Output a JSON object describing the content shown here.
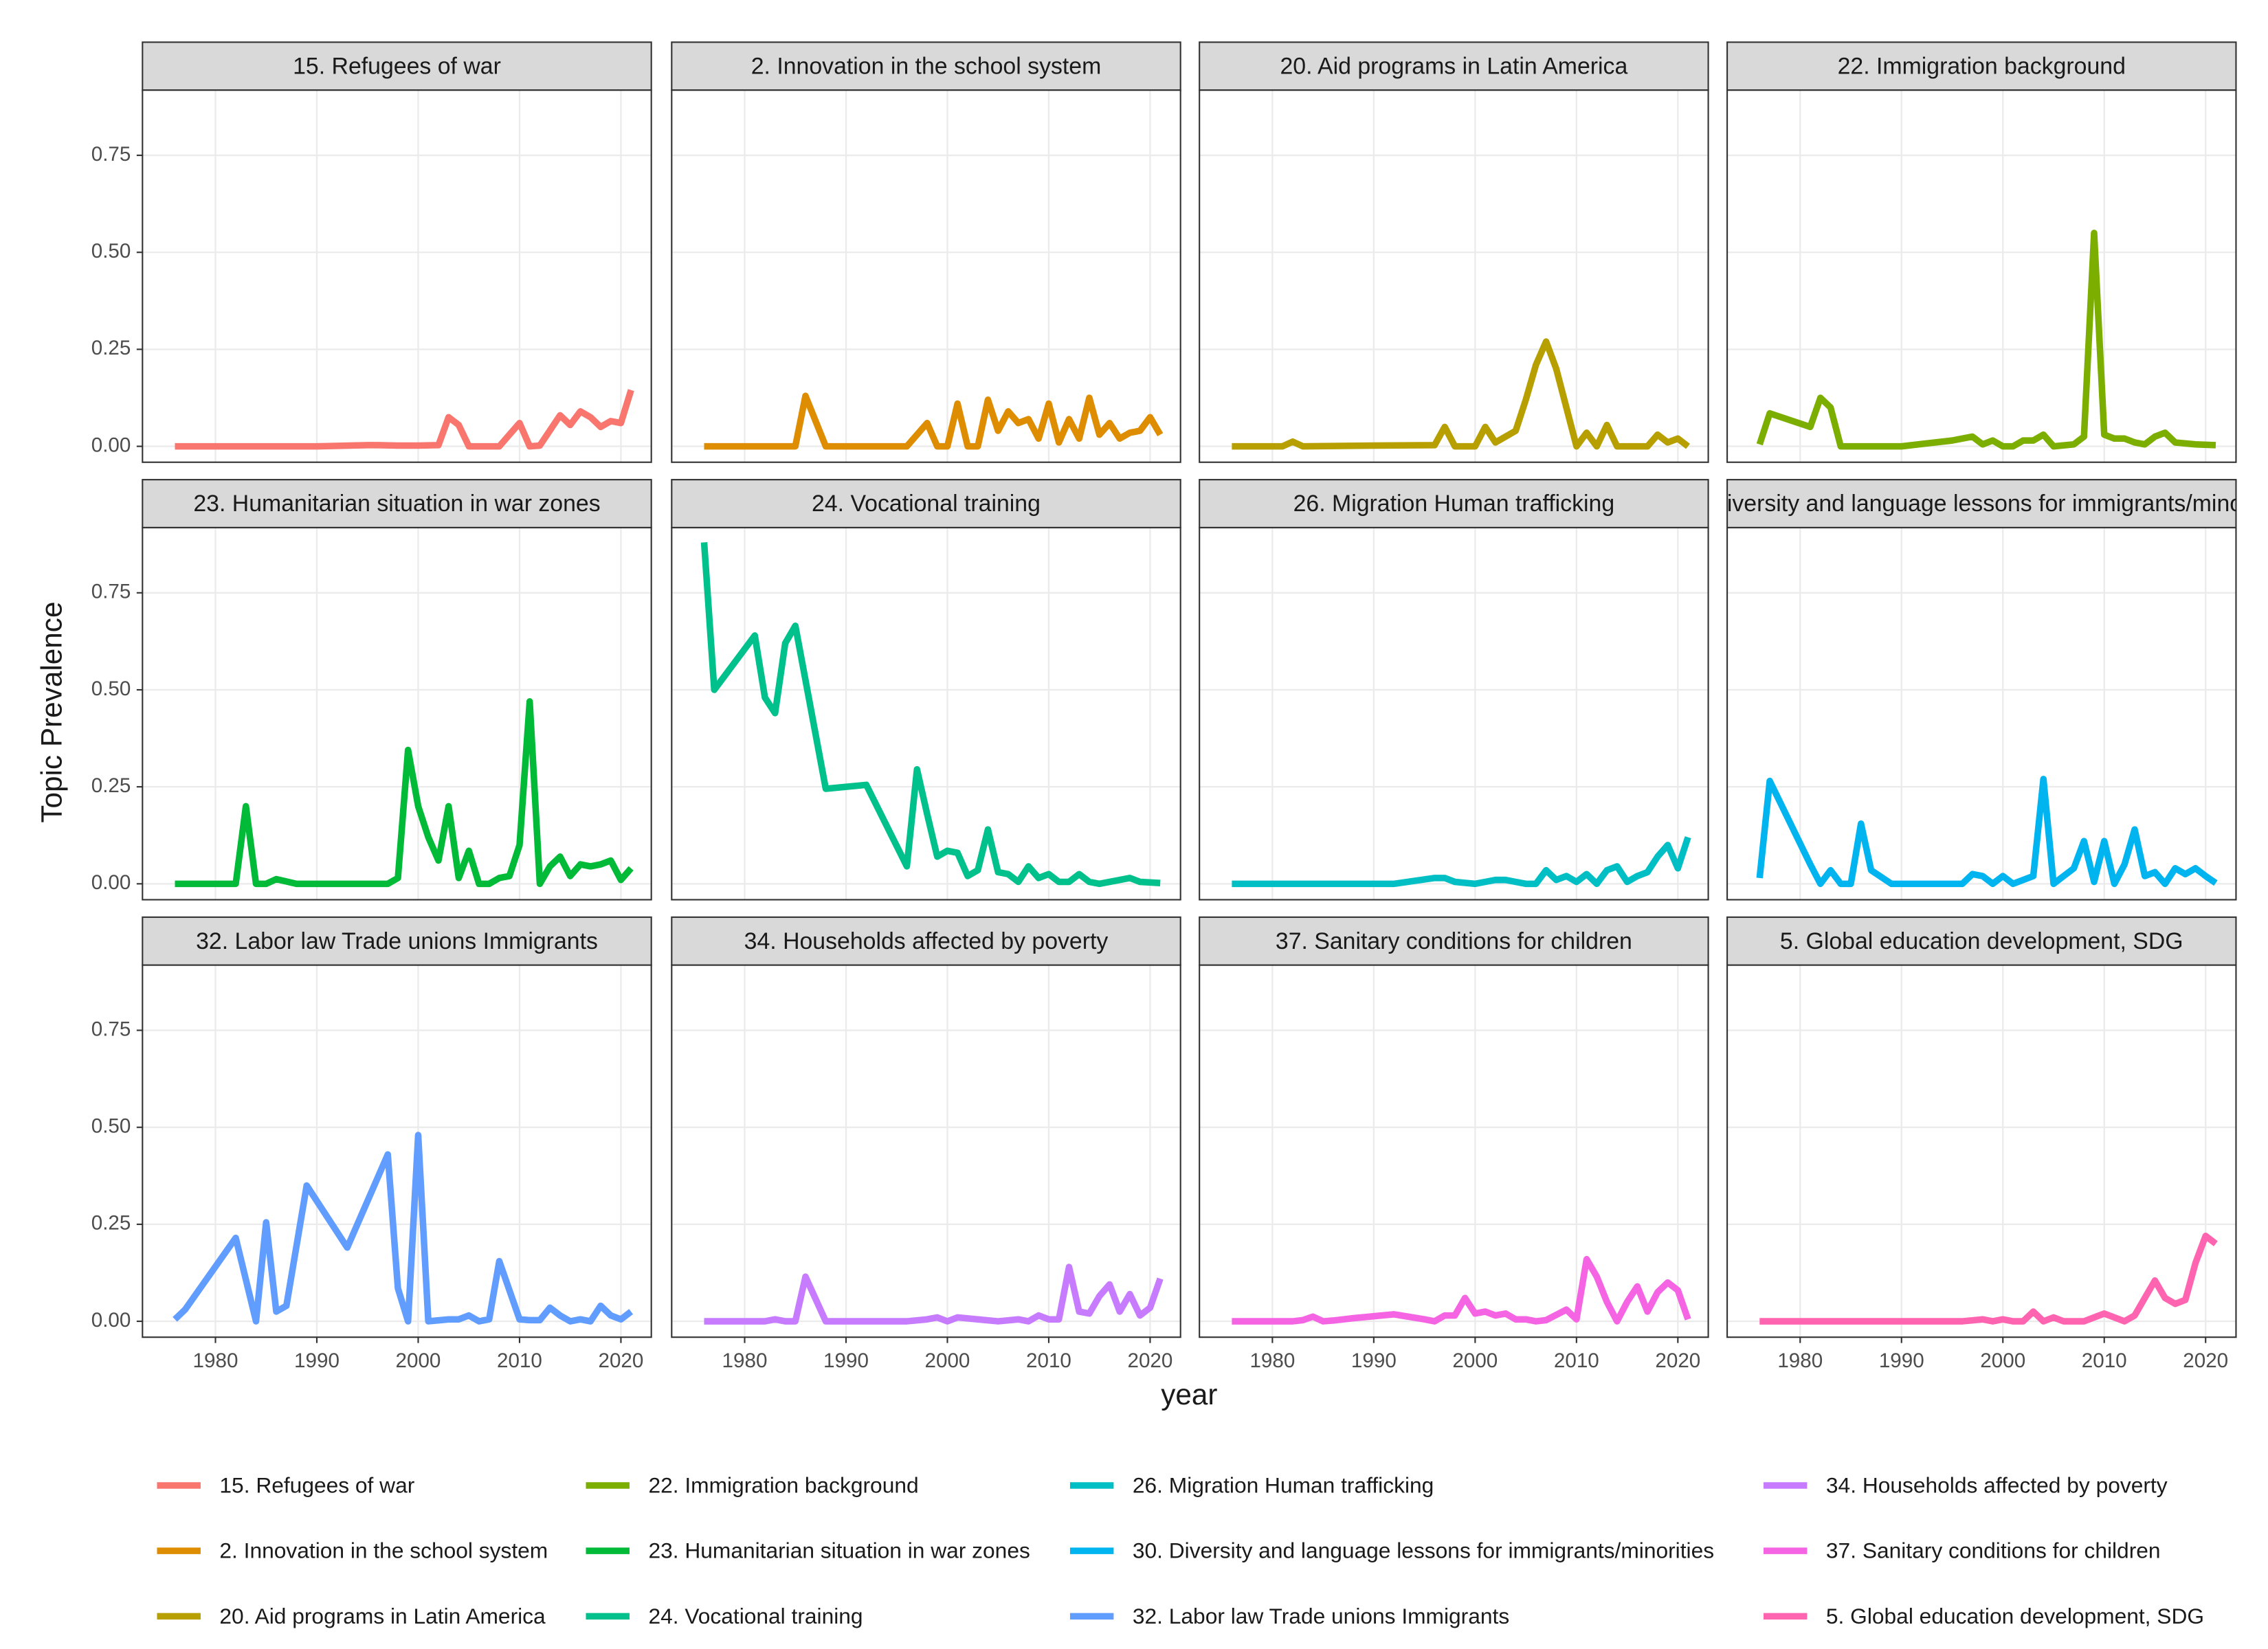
{
  "chart_data": {
    "type": "line",
    "xlabel": "year",
    "ylabel": "Topic Prevalence",
    "xlim": [
      1972.8,
      2023.0
    ],
    "xticks": [
      1980,
      1990,
      2000,
      2010,
      2020
    ],
    "ylim": [
      -0.041,
      0.918
    ],
    "yticks": [
      {
        "value": 0,
        "label": "0.00"
      },
      0.25,
      {
        "value": 0.5,
        "label": "0.50"
      },
      0.75
    ],
    "grid": true,
    "legend_position": "bottom",
    "series": [
      {
        "name": "15. Refugees of war",
        "color": "#F8766D",
        "x": [
          1976,
          1980,
          1985,
          1990,
          1995,
          1996,
          1998,
          2000,
          2002,
          2003,
          2004,
          2005,
          2008,
          2010,
          2011,
          2012,
          2014,
          2015,
          2016,
          2017,
          2018,
          2019,
          2020,
          2021
        ],
        "values": [
          0,
          0,
          0,
          0,
          0.003,
          0.003,
          0.002,
          0.002,
          0.003,
          0.075,
          0.055,
          0,
          0,
          0.06,
          0,
          0.002,
          0.08,
          0.055,
          0.09,
          0.075,
          0.05,
          0.065,
          0.06,
          0.145
        ]
      },
      {
        "name": "2. Innovation in the school system",
        "color": "#DE8C00",
        "x": [
          1976,
          1985,
          1986,
          1988,
          1996,
          1998,
          1999,
          2000,
          2001,
          2002,
          2003,
          2004,
          2005,
          2006,
          2007,
          2008,
          2009,
          2010,
          2011,
          2012,
          2013,
          2014,
          2015,
          2016,
          2017,
          2018,
          2019,
          2020,
          2021
        ],
        "values": [
          0,
          0,
          0.13,
          0,
          0,
          0.06,
          0,
          0,
          0.11,
          0,
          0,
          0.12,
          0.04,
          0.09,
          0.06,
          0.07,
          0.02,
          0.11,
          0.01,
          0.07,
          0.02,
          0.125,
          0.03,
          0.06,
          0.02,
          0.035,
          0.04,
          0.075,
          0.03
        ]
      },
      {
        "name": "20. Aid programs in Latin America",
        "color": "#B79F00",
        "x": [
          1976,
          1981,
          1982,
          1983,
          1990,
          1996,
          1997,
          1998,
          2000,
          2001,
          2002,
          2004,
          2005,
          2006,
          2007,
          2008,
          2009,
          2010,
          2011,
          2012,
          2013,
          2014,
          2015,
          2017,
          2018,
          2019,
          2020,
          2021
        ],
        "values": [
          0,
          0,
          0.012,
          0,
          0.002,
          0.003,
          0.05,
          0,
          0,
          0.05,
          0.01,
          0.04,
          0.12,
          0.21,
          0.27,
          0.2,
          0.1,
          0,
          0.035,
          0,
          0.055,
          0,
          0,
          0,
          0.03,
          0.01,
          0.02,
          0
        ]
      },
      {
        "name": "22. Immigration background",
        "color": "#7CAE00",
        "x": [
          1976,
          1977,
          1981,
          1982,
          1983,
          1984,
          1990,
          1995,
          1997,
          1998,
          1999,
          2000,
          2001,
          2002,
          2003,
          2004,
          2005,
          2007,
          2008,
          2009,
          2010,
          2011,
          2012,
          2013,
          2014,
          2015,
          2016,
          2017,
          2019,
          2021
        ],
        "values": [
          0.005,
          0.085,
          0.05,
          0.125,
          0.1,
          0,
          0,
          0.015,
          0.025,
          0.005,
          0.015,
          0,
          0,
          0.015,
          0.015,
          0.03,
          0,
          0.005,
          0.025,
          0.55,
          0.03,
          0.02,
          0.02,
          0.01,
          0.005,
          0.025,
          0.035,
          0.01,
          0.005,
          0.003
        ]
      },
      {
        "name": "23. Humanitarian situation in war zones",
        "color": "#00BA38",
        "x": [
          1976,
          1982,
          1983,
          1984,
          1985,
          1986,
          1988,
          1997,
          1998,
          1999,
          2000,
          2001,
          2002,
          2003,
          2004,
          2005,
          2006,
          2007,
          2008,
          2009,
          2010,
          2011,
          2012,
          2013,
          2014,
          2015,
          2016,
          2017,
          2018,
          2019,
          2020,
          2021
        ],
        "values": [
          0,
          0,
          0.2,
          0,
          0,
          0.012,
          0,
          0,
          0.015,
          0.345,
          0.2,
          0.12,
          0.06,
          0.2,
          0.015,
          0.085,
          0,
          0,
          0.015,
          0.02,
          0.1,
          0.47,
          0,
          0.045,
          0.07,
          0.02,
          0.05,
          0.045,
          0.05,
          0.06,
          0.01,
          0.04
        ]
      },
      {
        "name": "24. Vocational training",
        "color": "#00C08B",
        "x": [
          1976,
          1977,
          1981,
          1982,
          1983,
          1984,
          1985,
          1988,
          1992,
          1996,
          1997,
          1998,
          1999,
          2000,
          2001,
          2002,
          2003,
          2004,
          2005,
          2006,
          2007,
          2008,
          2009,
          2010,
          2011,
          2012,
          2013,
          2014,
          2015,
          2017,
          2018,
          2019,
          2021
        ],
        "values": [
          0.88,
          0.5,
          0.64,
          0.48,
          0.44,
          0.62,
          0.665,
          0.245,
          0.255,
          0.045,
          0.295,
          0.18,
          0.07,
          0.085,
          0.08,
          0.02,
          0.035,
          0.14,
          0.03,
          0.025,
          0.005,
          0.045,
          0.015,
          0.025,
          0.005,
          0.005,
          0.025,
          0.005,
          0,
          0.01,
          0.015,
          0.005,
          0.002
        ]
      },
      {
        "name": "26. Migration Human trafficking",
        "color": "#00BFC4",
        "x": [
          1976,
          1992,
          1996,
          1997,
          1998,
          2000,
          2001,
          2002,
          2003,
          2004,
          2005,
          2006,
          2007,
          2008,
          2009,
          2010,
          2011,
          2012,
          2013,
          2014,
          2015,
          2016,
          2017,
          2018,
          2019,
          2020,
          2021
        ],
        "values": [
          0,
          0,
          0.015,
          0.015,
          0.005,
          0,
          0.005,
          0.01,
          0.01,
          0.005,
          0,
          0,
          0.035,
          0.01,
          0.02,
          0.005,
          0.025,
          0,
          0.035,
          0.045,
          0.005,
          0.02,
          0.03,
          0.07,
          0.1,
          0.04,
          0.12
        ]
      },
      {
        "name": "30. Diversity and language lessons for immigrants/minorities",
        "color": "#00B4F0",
        "x": [
          1976,
          1977,
          1981,
          1982,
          1983,
          1984,
          1985,
          1986,
          1987,
          1989,
          1996,
          1997,
          1998,
          1999,
          2000,
          2001,
          2003,
          2004,
          2005,
          2006,
          2007,
          2008,
          2009,
          2010,
          2011,
          2012,
          2013,
          2014,
          2015,
          2016,
          2017,
          2018,
          2019,
          2020,
          2021
        ],
        "values": [
          0.015,
          0.265,
          0.05,
          0,
          0.035,
          0,
          0,
          0.155,
          0.035,
          0,
          0,
          0.025,
          0.02,
          0,
          0.02,
          0,
          0.02,
          0.27,
          0,
          0.02,
          0.04,
          0.11,
          0.005,
          0.11,
          0,
          0.05,
          0.14,
          0.02,
          0.03,
          0,
          0.04,
          0.025,
          0.04,
          0.02,
          0.002
        ]
      },
      {
        "name": "32. Labor law Trade unions Immigrants",
        "color": "#619CFF",
        "x": [
          1976,
          1977,
          1982,
          1984,
          1985,
          1986,
          1987,
          1989,
          1993,
          1997,
          1998,
          1999,
          2000,
          2001,
          2003,
          2004,
          2005,
          2006,
          2007,
          2008,
          2010,
          2011,
          2012,
          2013,
          2014,
          2015,
          2016,
          2017,
          2018,
          2019,
          2020,
          2021
        ],
        "values": [
          0.005,
          0.03,
          0.215,
          0,
          0.255,
          0.025,
          0.04,
          0.35,
          0.19,
          0.43,
          0.085,
          0,
          0.48,
          0,
          0.005,
          0.005,
          0.015,
          0,
          0.005,
          0.155,
          0.005,
          0.003,
          0.003,
          0.035,
          0.015,
          0,
          0.005,
          0,
          0.04,
          0.015,
          0.005,
          0.025
        ]
      },
      {
        "name": "34. Households affected by poverty",
        "color": "#C77CFF",
        "x": [
          1976,
          1982,
          1983,
          1984,
          1985,
          1986,
          1988,
          1996,
          1998,
          1999,
          2000,
          2001,
          2003,
          2005,
          2007,
          2008,
          2009,
          2010,
          2011,
          2012,
          2013,
          2014,
          2015,
          2016,
          2017,
          2018,
          2019,
          2020,
          2021
        ],
        "values": [
          0,
          0,
          0.005,
          0,
          0,
          0.115,
          0,
          0,
          0.005,
          0.01,
          0,
          0.01,
          0.005,
          0,
          0.005,
          0,
          0.015,
          0.005,
          0.005,
          0.14,
          0.025,
          0.02,
          0.065,
          0.095,
          0.025,
          0.07,
          0.015,
          0.035,
          0.11
        ]
      },
      {
        "name": "37. Sanitary conditions for children",
        "color": "#F564E3",
        "x": [
          1976,
          1982,
          1983,
          1984,
          1985,
          1986,
          1988,
          1992,
          1995,
          1996,
          1997,
          1998,
          1999,
          2000,
          2001,
          2002,
          2003,
          2004,
          2005,
          2006,
          2007,
          2009,
          2010,
          2011,
          2012,
          2013,
          2014,
          2015,
          2016,
          2017,
          2018,
          2019,
          2020,
          2021
        ],
        "values": [
          0,
          0,
          0.003,
          0.012,
          0,
          0.002,
          0.008,
          0.018,
          0.005,
          0,
          0.015,
          0.015,
          0.06,
          0.02,
          0.025,
          0.015,
          0.02,
          0.005,
          0.005,
          0,
          0.003,
          0.03,
          0.005,
          0.16,
          0.115,
          0.05,
          0,
          0.05,
          0.09,
          0.025,
          0.075,
          0.1,
          0.08,
          0.005
        ]
      },
      {
        "name": "5. Global education development, SDG",
        "color": "#FF64B0",
        "x": [
          1976,
          1996,
          1998,
          1999,
          2000,
          2001,
          2002,
          2003,
          2004,
          2005,
          2006,
          2008,
          2010,
          2011,
          2012,
          2013,
          2014,
          2015,
          2016,
          2017,
          2018,
          2019,
          2020,
          2021
        ],
        "values": [
          0,
          0,
          0.005,
          0,
          0.005,
          0,
          0,
          0.025,
          0,
          0.01,
          0,
          0,
          0.02,
          0.01,
          0,
          0.015,
          0.06,
          0.105,
          0.06,
          0.045,
          0.055,
          0.15,
          0.22,
          0.2
        ]
      }
    ]
  }
}
